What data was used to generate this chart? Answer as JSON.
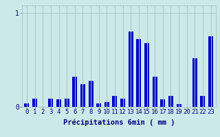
{
  "categories": [
    0,
    1,
    2,
    3,
    4,
    5,
    6,
    7,
    8,
    9,
    10,
    11,
    12,
    13,
    14,
    15,
    16,
    17,
    18,
    19,
    20,
    21,
    22,
    23
  ],
  "values": [
    0.04,
    0.09,
    0.0,
    0.09,
    0.08,
    0.09,
    0.32,
    0.24,
    0.28,
    0.04,
    0.05,
    0.12,
    0.09,
    0.8,
    0.72,
    0.68,
    0.32,
    0.08,
    0.12,
    0.03,
    0.0,
    0.52,
    0.12,
    0.75
  ],
  "bar_color": "#0000cc",
  "bg_color": "#cce8e8",
  "grid_color": "#a8c8c8",
  "xlabel": "Précipitations 6min ( mm )",
  "ylim": [
    0,
    1.08
  ],
  "xlim": [
    -0.6,
    23.6
  ],
  "xlabel_fontsize": 7.5,
  "tick_fontsize": 6.5
}
